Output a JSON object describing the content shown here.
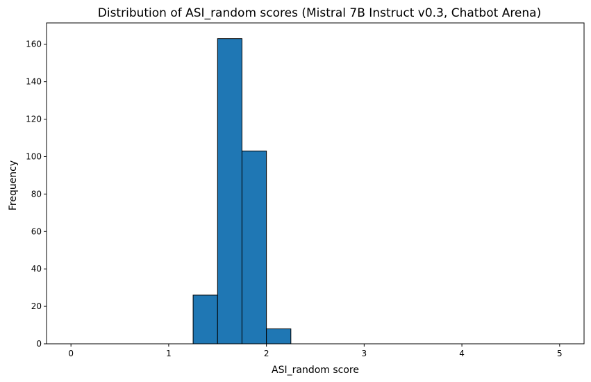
{
  "chart_data": {
    "type": "bar",
    "title": "Distribution of ASI_random scores (Mistral 7B Instruct v0.3, Chatbot Arena)",
    "xlabel": "ASI_random score",
    "ylabel": "Frequency",
    "xlim": [
      -0.25,
      5.25
    ],
    "ylim": [
      0,
      171.4
    ],
    "x_ticks": [
      0,
      1,
      2,
      3,
      4,
      5
    ],
    "y_ticks": [
      0,
      20,
      40,
      60,
      80,
      100,
      120,
      140,
      160
    ],
    "bin_width": 0.25,
    "bins": [
      {
        "start": 0.0,
        "end": 0.25,
        "value": 0
      },
      {
        "start": 0.25,
        "end": 0.5,
        "value": 0
      },
      {
        "start": 0.5,
        "end": 0.75,
        "value": 0
      },
      {
        "start": 0.75,
        "end": 1.0,
        "value": 0
      },
      {
        "start": 1.0,
        "end": 1.25,
        "value": 0
      },
      {
        "start": 1.25,
        "end": 1.5,
        "value": 26
      },
      {
        "start": 1.5,
        "end": 1.75,
        "value": 163
      },
      {
        "start": 1.75,
        "end": 2.0,
        "value": 103
      },
      {
        "start": 2.0,
        "end": 2.25,
        "value": 8
      },
      {
        "start": 2.25,
        "end": 2.5,
        "value": 0
      },
      {
        "start": 2.5,
        "end": 2.75,
        "value": 0
      },
      {
        "start": 2.75,
        "end": 3.0,
        "value": 0
      },
      {
        "start": 3.0,
        "end": 3.25,
        "value": 0
      },
      {
        "start": 3.25,
        "end": 3.5,
        "value": 0
      },
      {
        "start": 3.5,
        "end": 3.75,
        "value": 0
      },
      {
        "start": 3.75,
        "end": 4.0,
        "value": 0
      },
      {
        "start": 4.0,
        "end": 4.25,
        "value": 0
      },
      {
        "start": 4.25,
        "end": 4.5,
        "value": 0
      },
      {
        "start": 4.5,
        "end": 4.75,
        "value": 0
      },
      {
        "start": 4.75,
        "end": 5.0,
        "value": 0
      }
    ],
    "bar_color": "#1f77b4",
    "edge_color": "#000000",
    "grid": false,
    "legend": "none"
  }
}
